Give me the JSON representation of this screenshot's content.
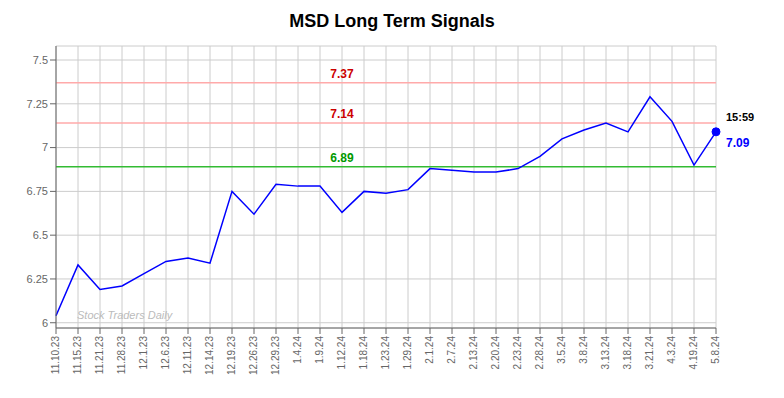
{
  "chart_data": {
    "type": "line",
    "title": "MSD Long Term Signals",
    "categories": [
      "11.10.23",
      "11.15.23",
      "11.21.23",
      "11.28.23",
      "12.1.23",
      "12.6.23",
      "12.11.23",
      "12.14.23",
      "12.19.23",
      "12.26.23",
      "12.29.23",
      "1.4.24",
      "1.9.24",
      "1.12.24",
      "1.18.24",
      "1.23.24",
      "1.29.24",
      "2.1.24",
      "2.7.24",
      "2.13.24",
      "2.20.24",
      "2.23.24",
      "2.28.24",
      "3.5.24",
      "3.8.24",
      "3.13.24",
      "3.18.24",
      "3.21.24",
      "4.3.24",
      "4.19.24",
      "5.8.24"
    ],
    "values": [
      6.04,
      6.33,
      6.19,
      6.21,
      6.28,
      6.35,
      6.37,
      6.34,
      6.75,
      6.62,
      6.79,
      6.78,
      6.78,
      6.63,
      6.75,
      6.74,
      6.76,
      6.88,
      6.87,
      6.86,
      6.86,
      6.88,
      6.95,
      7.05,
      7.1,
      7.14,
      7.09,
      7.29,
      7.15,
      6.9,
      7.09
    ],
    "color": "blue",
    "ylim": [
      5.97,
      7.58
    ],
    "yticks": [
      6.0,
      6.25,
      6.5,
      6.75,
      7.0,
      7.25,
      7.5
    ],
    "grid": true,
    "hlines": [
      {
        "value": 7.14,
        "label": "7.14",
        "color": "#ffaaaa",
        "label_color": "#cc0000"
      },
      {
        "value": 7.37,
        "label": "7.37",
        "color": "#ffaaaa",
        "label_color": "#cc0000"
      },
      {
        "value": 6.89,
        "label": "6.89",
        "color": "#33bb33",
        "label_color": "#009900"
      }
    ],
    "annotations": [
      {
        "text": "15:59",
        "color": "black"
      },
      {
        "text": "7.09",
        "color": "blue"
      }
    ],
    "watermark": {
      "text": "Stock Traders Daily",
      "color": "#bbbbbb"
    }
  }
}
